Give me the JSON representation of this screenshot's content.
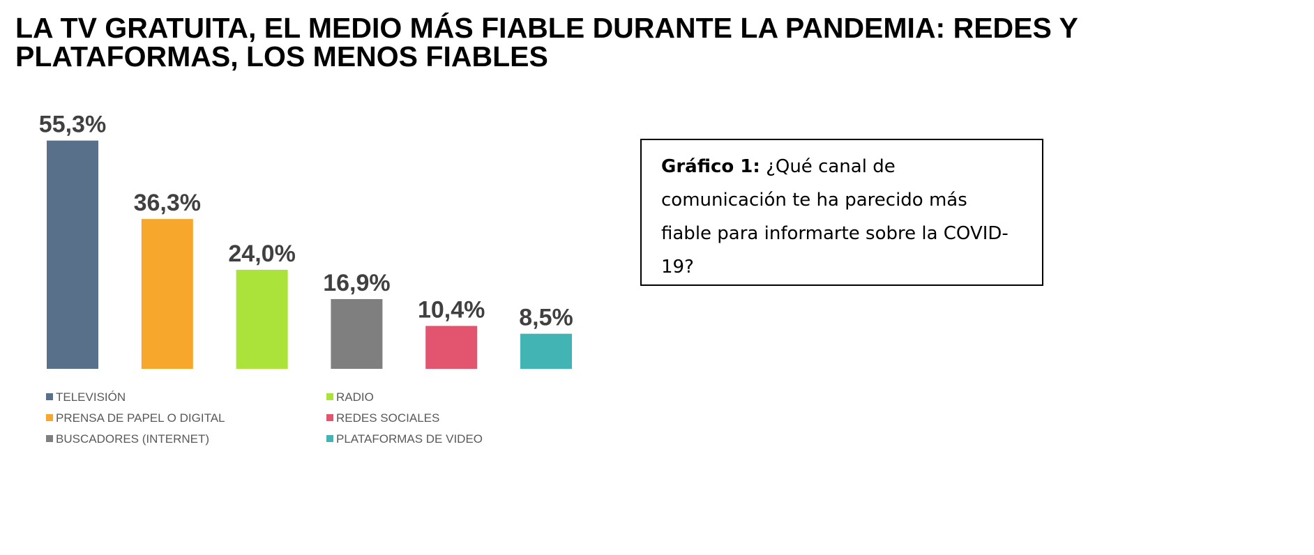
{
  "chart_data": {
    "type": "bar",
    "title": [
      "LA TV GRATUITA, EL MEDIO MÁS FIABLE DURANTE LA PANDEMIA: REDES Y",
      "PLATAFORMAS, LOS MENOS FIABLES"
    ],
    "categories": [
      "TELEVISIÓN",
      "PRENSA DE PAPEL O DIGITAL",
      "RADIO",
      "BUSCADORES (INTERNET)",
      "REDES SOCIALES",
      "PLATAFORMAS DE VIDEO"
    ],
    "values": [
      55.3,
      36.3,
      24.0,
      16.9,
      10.4,
      8.5
    ],
    "value_labels": [
      "55,3%",
      "36,3%",
      "24,0%",
      "16,9%",
      "10,4%",
      "8,5%"
    ],
    "colors": [
      "#587089",
      "#f7a72b",
      "#abe33a",
      "#7f7f7f",
      "#e3546f",
      "#42b4b4"
    ],
    "note": {
      "label": "Gráfico 1:",
      "text": "¿Qué canal de comunicación te ha parecido más fiable para informarte sobre la COVID-19?"
    }
  }
}
